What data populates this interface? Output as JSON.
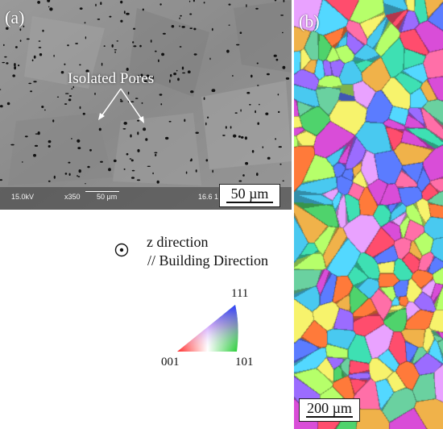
{
  "panel_a": {
    "label": "(a)",
    "annotation": "Isolated Pores",
    "sem_kv": "15.0kV",
    "sem_mag": "x350",
    "sem_scale": "50 μm",
    "sem_id": "16.6 1",
    "scale_bar": "50 µm"
  },
  "panel_b": {
    "label": "(b)",
    "scale_bar": "200 µm"
  },
  "legend": {
    "direction_line1": "z direction",
    "direction_line2": "// Building Direction",
    "ipf_111": "111",
    "ipf_001": "001",
    "ipf_101": "101"
  },
  "colors": {
    "sem_gray": "#8f8f8f",
    "grain_palette": [
      "#ff6fa8",
      "#9b6cff",
      "#53d8ff",
      "#4fd36c",
      "#f7f36c",
      "#ff7a3a",
      "#5b7cff",
      "#d94dd8",
      "#3ee0b3",
      "#ff4d6d",
      "#b6ff6a",
      "#6ad1a0",
      "#e9a2ff",
      "#49c9f0",
      "#f0b24a"
    ]
  },
  "icons": {
    "direction_symbol": "circle-dot-icon"
  }
}
